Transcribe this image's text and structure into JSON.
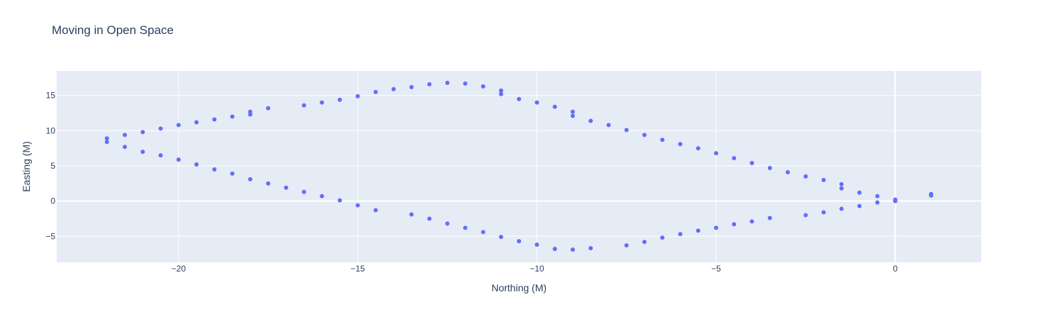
{
  "chart_data": {
    "type": "scatter",
    "title": "Moving in Open Space",
    "xlabel": "Northing (M)",
    "ylabel": "Easting (M)",
    "xlim": [
      -23.4,
      2.4
    ],
    "ylim": [
      -8.7,
      18.5
    ],
    "x_ticks": [
      -20,
      -15,
      -10,
      -5,
      0
    ],
    "x_tick_labels": [
      "−20",
      "−15",
      "−10",
      "−5",
      "0"
    ],
    "y_ticks": [
      -5,
      0,
      5,
      10,
      15
    ],
    "y_tick_labels": [
      "−5",
      "0",
      "5",
      "10",
      "15"
    ],
    "grid": true,
    "colors": {
      "marker": "#636efa",
      "plot_bg": "#e5ecf6",
      "grid": "#ffffff",
      "text": "#2a3f5f"
    },
    "series": [
      {
        "points": [
          [
            -22,
            8.9
          ],
          [
            -22,
            8.4
          ],
          [
            -21.5,
            9.4
          ],
          [
            -21.5,
            7.7
          ],
          [
            -21,
            9.8
          ],
          [
            -21,
            7.0
          ],
          [
            -20.5,
            10.3
          ],
          [
            -20.5,
            6.5
          ],
          [
            -20,
            10.8
          ],
          [
            -20,
            5.9
          ],
          [
            -19.5,
            11.2
          ],
          [
            -19.5,
            5.2
          ],
          [
            -19,
            11.6
          ],
          [
            -19,
            4.5
          ],
          [
            -18.5,
            12.0
          ],
          [
            -18.5,
            3.9
          ],
          [
            -18,
            12.7
          ],
          [
            -18,
            12.3
          ],
          [
            -18,
            3.1
          ],
          [
            -17.5,
            13.2
          ],
          [
            -17.5,
            2.5
          ],
          [
            -17,
            1.9
          ],
          [
            -16.5,
            13.6
          ],
          [
            -16.5,
            1.3
          ],
          [
            -16,
            14.0
          ],
          [
            -16,
            0.7
          ],
          [
            -15.5,
            14.4
          ],
          [
            -15.5,
            0.1
          ],
          [
            -15,
            14.9
          ],
          [
            -15,
            -0.6
          ],
          [
            -14.5,
            15.5
          ],
          [
            -14.5,
            -1.3
          ],
          [
            -14,
            15.9
          ],
          [
            -13.5,
            16.2
          ],
          [
            -13.5,
            -1.9
          ],
          [
            -13,
            16.6
          ],
          [
            -13,
            -2.5
          ],
          [
            -12.5,
            16.8
          ],
          [
            -12.5,
            -3.2
          ],
          [
            -12,
            16.7
          ],
          [
            -12,
            -3.8
          ],
          [
            -11.5,
            16.3
          ],
          [
            -11.5,
            -4.4
          ],
          [
            -11,
            15.7
          ],
          [
            -11,
            15.2
          ],
          [
            -11,
            -5.1
          ],
          [
            -10.5,
            14.5
          ],
          [
            -10.5,
            -5.7
          ],
          [
            -10,
            14.0
          ],
          [
            -10,
            -6.2
          ],
          [
            -9.5,
            13.4
          ],
          [
            -9.5,
            -6.8
          ],
          [
            -9,
            12.7
          ],
          [
            -9,
            12.1
          ],
          [
            -9,
            -6.9
          ],
          [
            -8.5,
            11.4
          ],
          [
            -8.5,
            -6.7
          ],
          [
            -8,
            10.8
          ],
          [
            -7.5,
            10.1
          ],
          [
            -7.5,
            -6.3
          ],
          [
            -7,
            9.4
          ],
          [
            -7,
            -5.8
          ],
          [
            -6.5,
            8.7
          ],
          [
            -6.5,
            -5.2
          ],
          [
            -6,
            8.1
          ],
          [
            -6,
            -4.7
          ],
          [
            -5.5,
            7.5
          ],
          [
            -5.5,
            -4.2
          ],
          [
            -5,
            6.8
          ],
          [
            -5,
            -3.8
          ],
          [
            -4.5,
            6.1
          ],
          [
            -4.5,
            -3.3
          ],
          [
            -4,
            5.4
          ],
          [
            -4,
            -2.9
          ],
          [
            -3.5,
            4.7
          ],
          [
            -3.5,
            -2.4
          ],
          [
            -3,
            4.1
          ],
          [
            -2.5,
            3.5
          ],
          [
            -2.5,
            -2.0
          ],
          [
            -2,
            3.0
          ],
          [
            -2,
            -1.6
          ],
          [
            -1.5,
            2.4
          ],
          [
            -1.5,
            1.8
          ],
          [
            -1.5,
            -1.1
          ],
          [
            -1,
            1.2
          ],
          [
            -1,
            -0.7
          ],
          [
            -0.5,
            0.7
          ],
          [
            -0.5,
            -0.2
          ],
          [
            0,
            0.2
          ],
          [
            0,
            0.0
          ],
          [
            1,
            1.0
          ],
          [
            1,
            0.8
          ]
        ]
      }
    ]
  }
}
